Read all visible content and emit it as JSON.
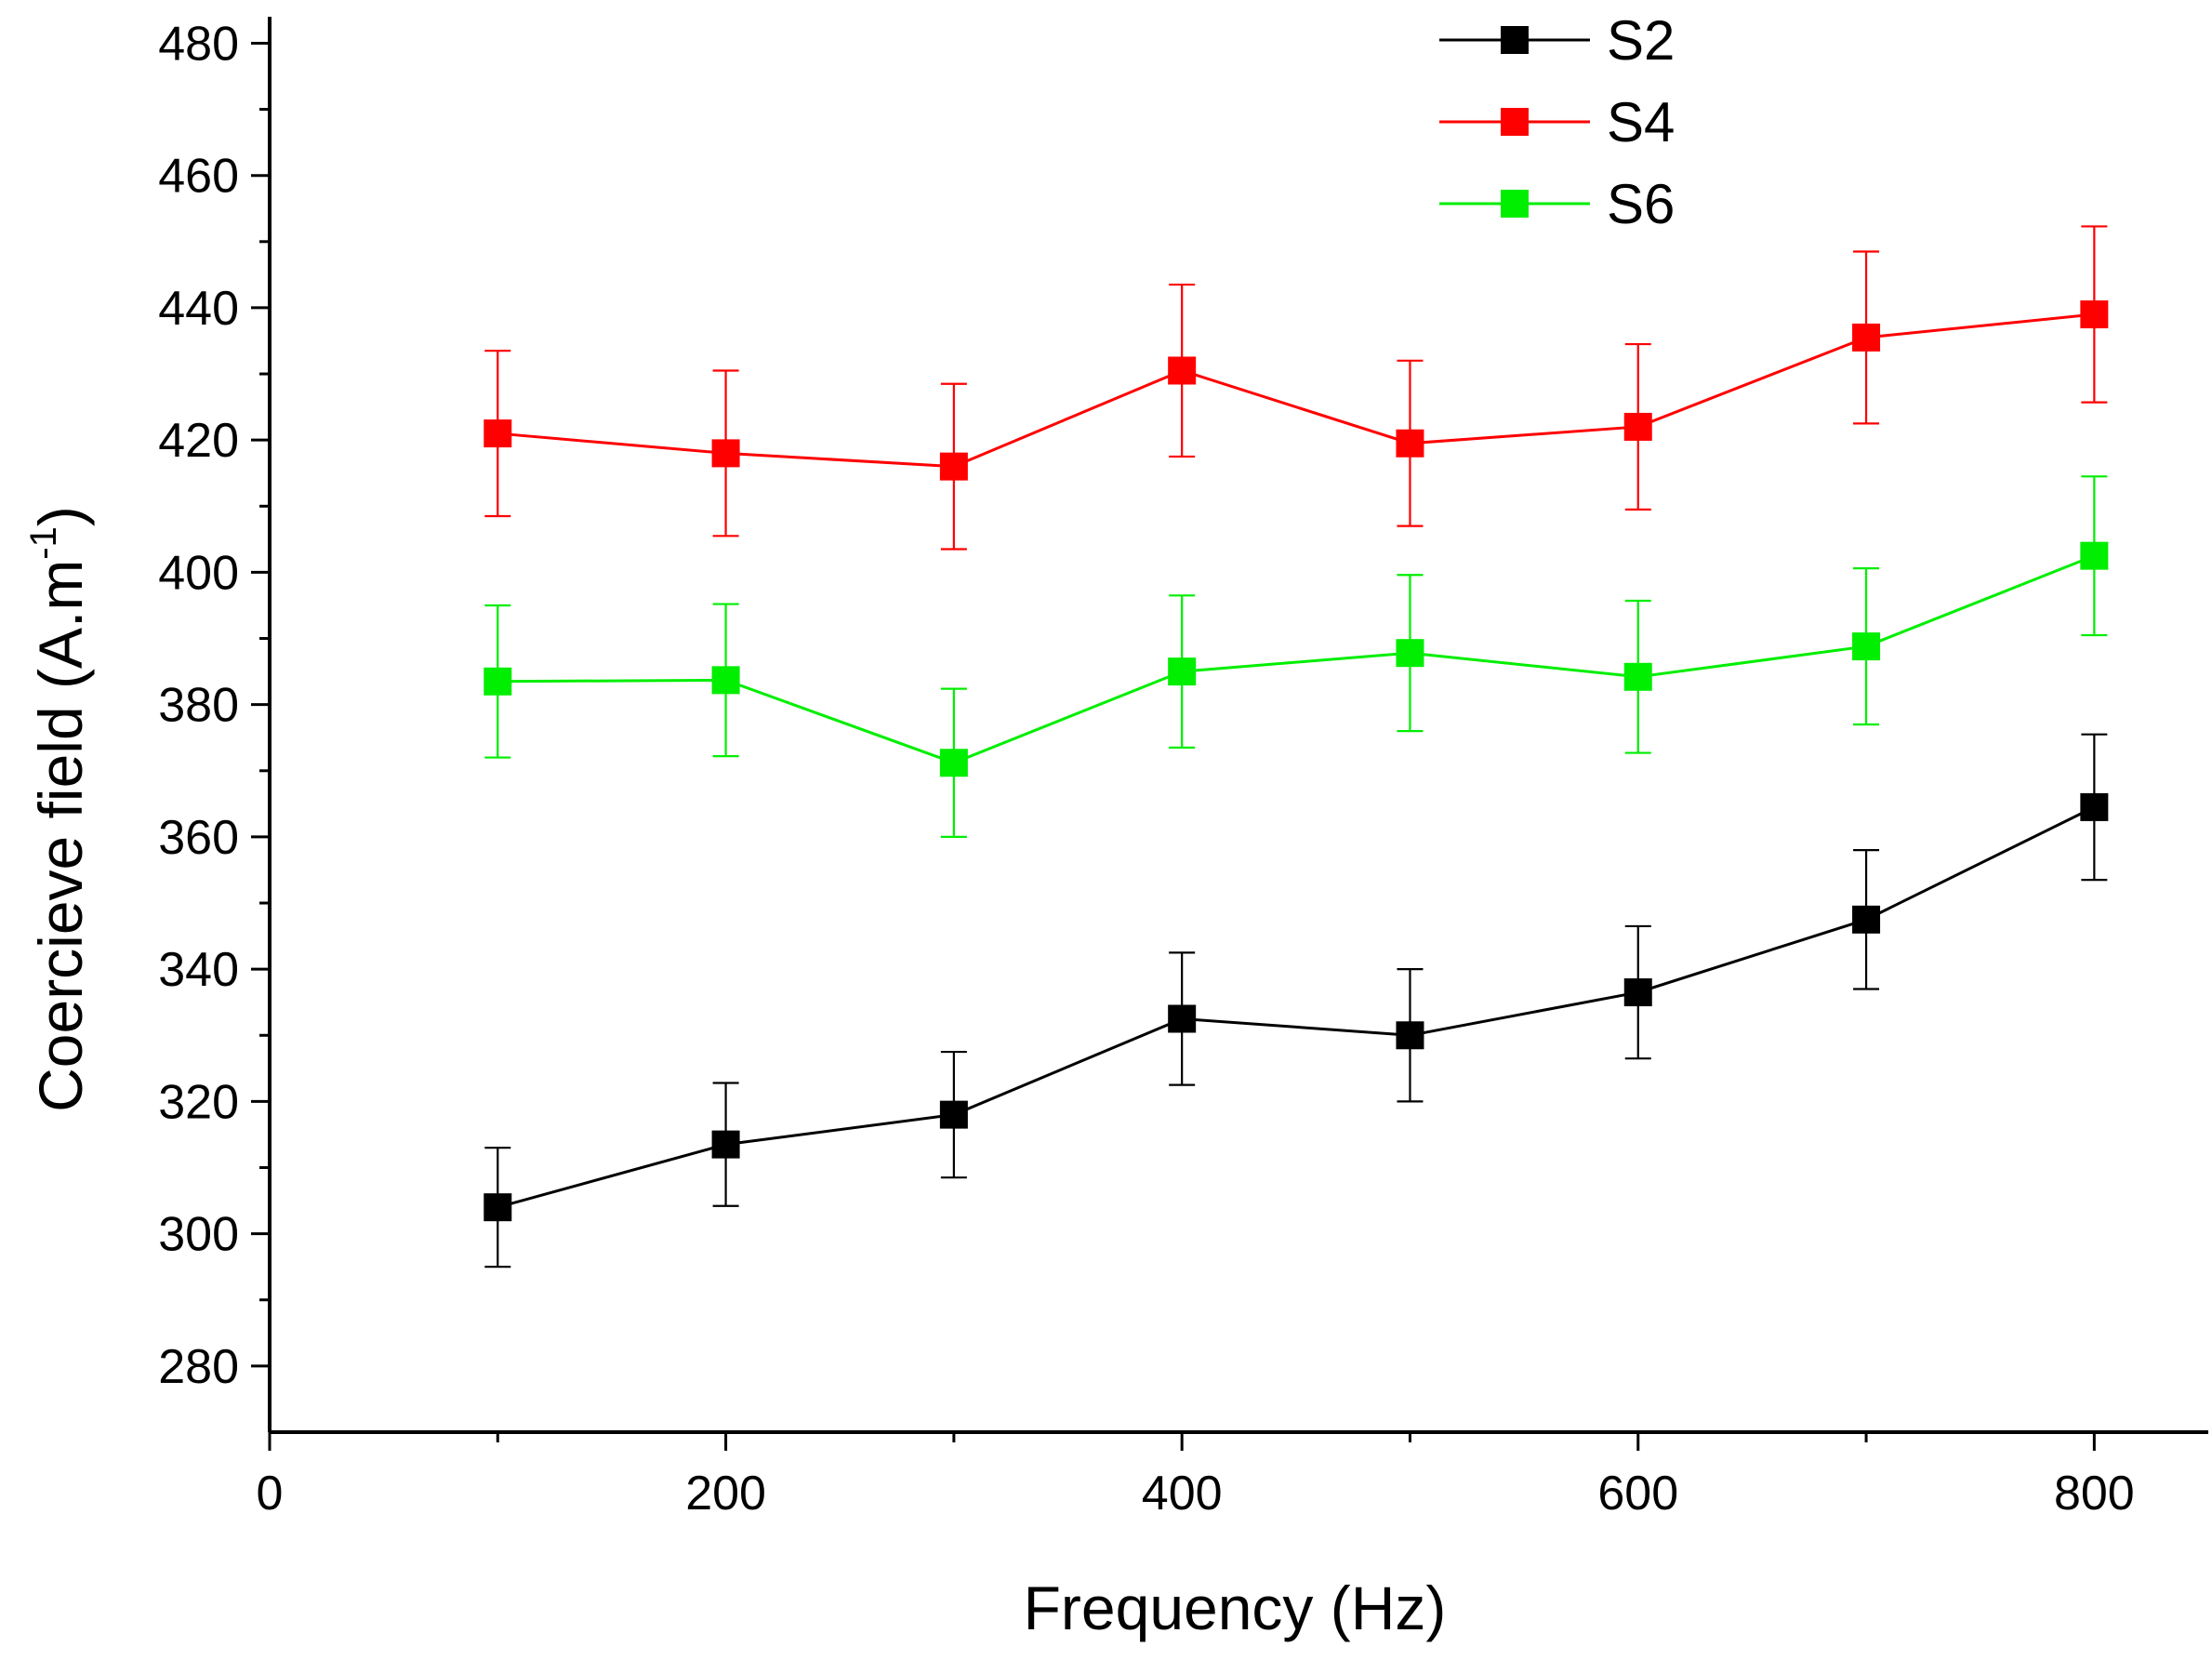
{
  "chart_data": {
    "type": "line",
    "title": "",
    "xlabel": "Frequency (Hz)",
    "ylabel_main": "Coercieve field (A.m",
    "ylabel_sup": "-1",
    "ylabel_close": ")",
    "xlim": [
      0,
      850
    ],
    "ylim": [
      270,
      484
    ],
    "x_ticks": [
      0,
      200,
      400,
      600,
      800
    ],
    "x_tick_labels": [
      "0",
      "200",
      "400",
      "600",
      "800"
    ],
    "y_ticks": [
      280,
      300,
      320,
      340,
      360,
      380,
      400,
      420,
      440,
      460,
      480
    ],
    "y_tick_labels": [
      "280",
      "300",
      "320",
      "340",
      "360",
      "380",
      "400",
      "420",
      "440",
      "460",
      "480"
    ],
    "legend_position": "top-right",
    "grid": false,
    "x": [
      100,
      200,
      300,
      400,
      500,
      600,
      700,
      800
    ],
    "series": [
      {
        "name": "S2",
        "color": "#000000",
        "values": [
          304,
          313.5,
          318,
          332.5,
          330,
          336.5,
          347.5,
          364.5
        ],
        "errors": [
          9,
          9.3,
          9.5,
          10,
          10,
          10,
          10.5,
          11
        ]
      },
      {
        "name": "S4",
        "color": "#ff0000",
        "values": [
          421,
          418,
          416,
          430.5,
          419.5,
          422,
          435.5,
          439
        ],
        "errors": [
          12.5,
          12.5,
          12.5,
          13,
          12.5,
          12.5,
          13,
          13.3
        ]
      },
      {
        "name": "S6",
        "color": "#00ee00",
        "values": [
          383.5,
          383.7,
          371.2,
          385,
          387.8,
          384.2,
          388.8,
          402.5
        ],
        "errors": [
          11.5,
          11.5,
          11.2,
          11.5,
          11.8,
          11.5,
          11.8,
          12
        ]
      }
    ]
  }
}
